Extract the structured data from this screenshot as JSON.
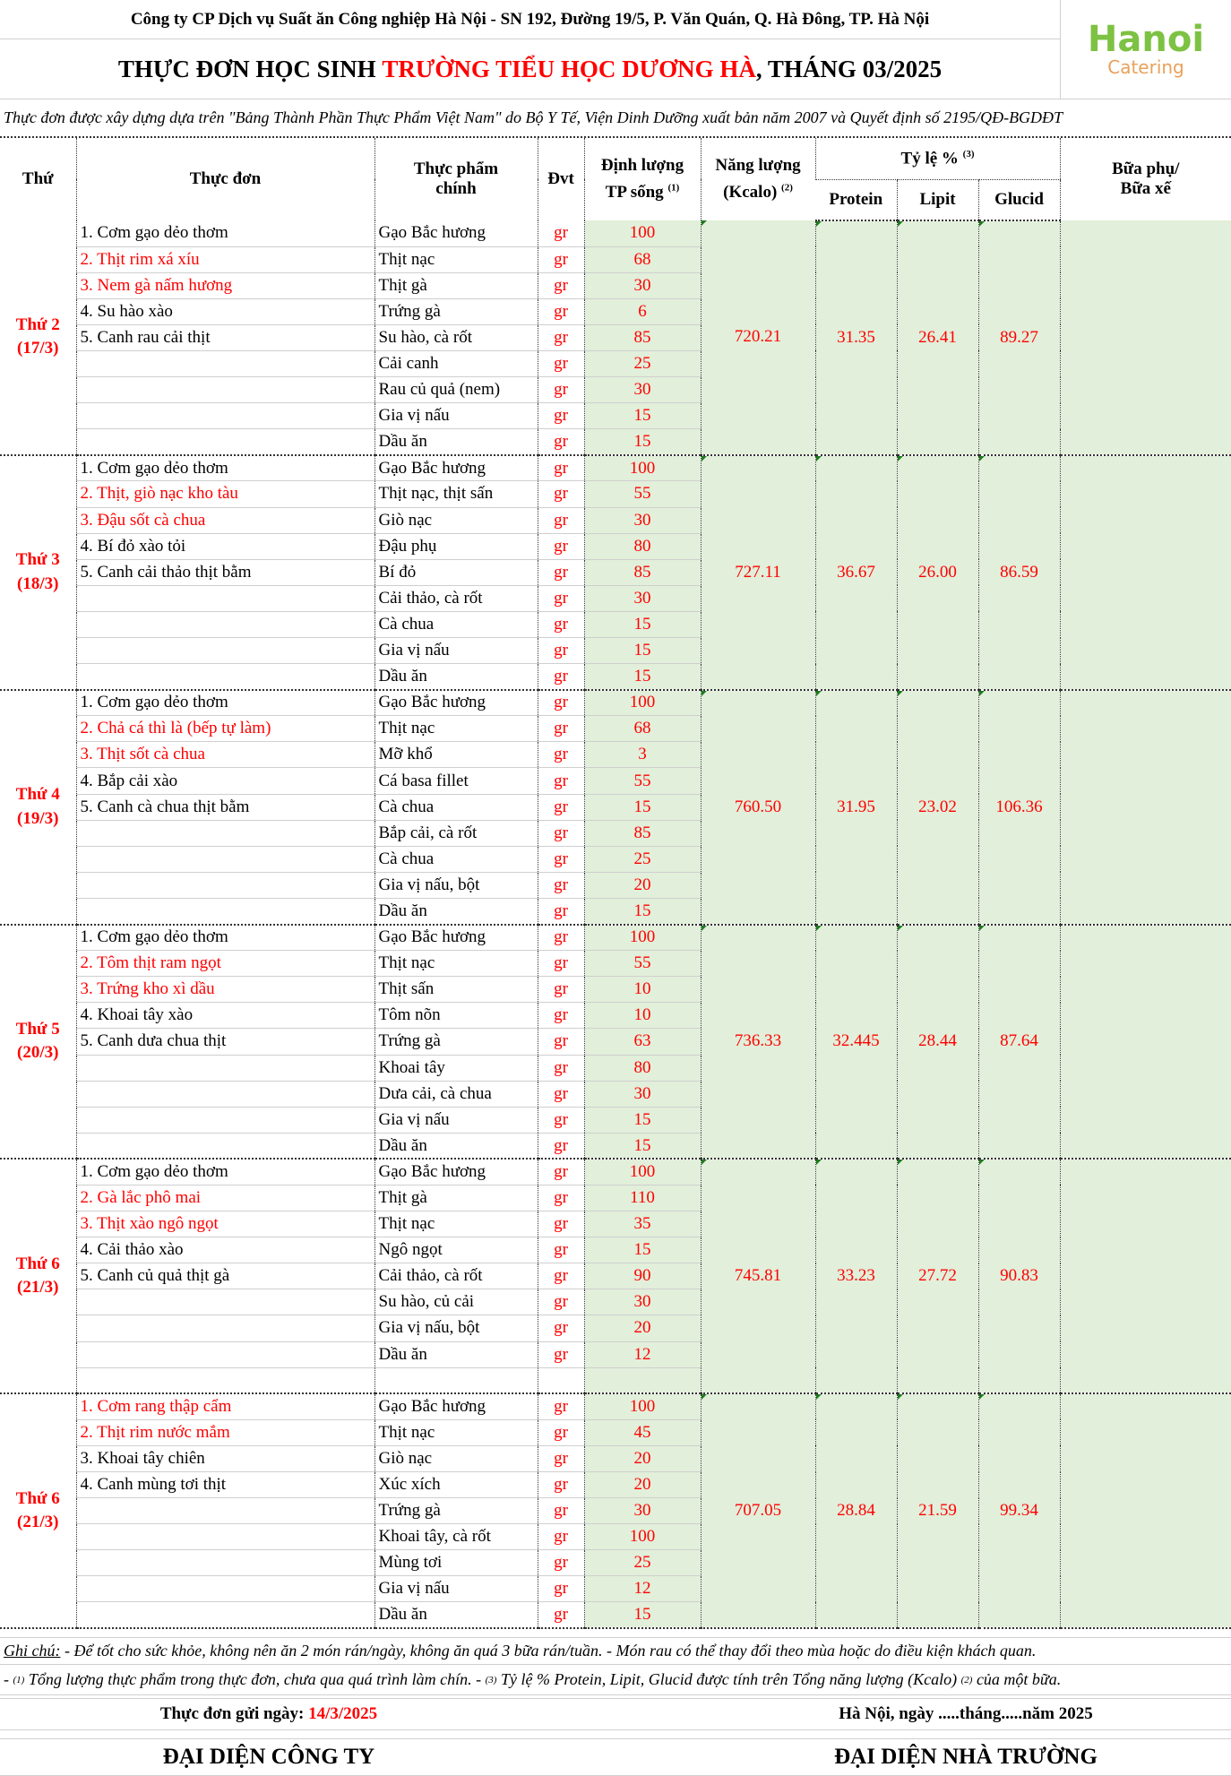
{
  "header": {
    "company": "Công ty CP Dịch vụ Suất ăn Công nghiệp Hà Nội - SN 192, Đường 19/5, P. Văn Quán, Q. Hà Đông, TP. Hà Nội",
    "title_part1": "THỰC ĐƠN HỌC SINH ",
    "title_school": "TRƯỜNG TIỂU HỌC DƯƠNG HÀ",
    "title_part2": ", THÁNG 03/2025",
    "logo_line1": "Hanoi",
    "logo_line2": "Catering",
    "note": "Thực đơn được xây dựng dựa trên \"Bảng Thành Phần Thực Phẩm Việt Nam\" do Bộ Y Tế, Viện Dinh Dưỡng xuất bản năm 2007 và Quyết định số 2195/QĐ-BGDĐT"
  },
  "columns": {
    "thu": "Thứ",
    "thuc_don": "Thực đơn",
    "thuc_pham_1": "Thực phẩm",
    "thuc_pham_2": "chính",
    "dvt": "Đvt",
    "dinh_luong_1": "Định lượng",
    "dinh_luong_2": "TP sống",
    "dinh_luong_sup": "(1)",
    "nang_luong_1": "Năng lượng",
    "nang_luong_2": "(Kcalo)",
    "nang_luong_sup": "(2)",
    "ty_le": "Tỷ lệ %",
    "ty_le_sup": "(3)",
    "protein": "Protein",
    "lipit": "Lipit",
    "glucid": "Glucid",
    "bua_phu_1": "Bữa phụ/",
    "bua_phu_2": "Bữa xế"
  },
  "unit": "gr",
  "colors": {
    "accent": "#ff0000",
    "green_fill": "#e2efda"
  },
  "days": [
    {
      "label": "Thứ 2",
      "date": "(17/3)",
      "dishes": [
        {
          "text": "1. Cơm gạo dẻo thơm",
          "red": false
        },
        {
          "text": "2. Thịt rim xá xíu",
          "red": true
        },
        {
          "text": "3. Nem gà nấm hương",
          "red": true
        },
        {
          "text": "4. Su hào xào",
          "red": false
        },
        {
          "text": "5. Canh rau cải thịt",
          "red": false
        }
      ],
      "ingredients": [
        {
          "name": "Gạo Bắc hương",
          "qty": "100"
        },
        {
          "name": "Thịt nạc",
          "qty": "68"
        },
        {
          "name": "Thịt gà",
          "qty": "30"
        },
        {
          "name": "Trứng gà",
          "qty": "6"
        },
        {
          "name": "Su hào, cà rốt",
          "qty": "85"
        },
        {
          "name": "Cải canh",
          "qty": "25"
        },
        {
          "name": "Rau củ quả (nem)",
          "qty": "30"
        },
        {
          "name": "Gia vị nấu",
          "qty": "15"
        },
        {
          "name": "Dầu ăn",
          "qty": "15"
        }
      ],
      "energy": "720.21",
      "protein": "31.35",
      "lipit": "26.41",
      "glucid": "89.27"
    },
    {
      "label": "Thứ 3",
      "date": "(18/3)",
      "dishes": [
        {
          "text": "1. Cơm gạo dẻo thơm",
          "red": false
        },
        {
          "text": "2. Thịt, giò nạc kho tàu",
          "red": true
        },
        {
          "text": "3. Đậu sốt cà chua",
          "red": true
        },
        {
          "text": "4. Bí đỏ xào tỏi",
          "red": false
        },
        {
          "text": "5. Canh cải thảo thịt bằm",
          "red": false
        }
      ],
      "ingredients": [
        {
          "name": "Gạo Bắc hương",
          "qty": "100"
        },
        {
          "name": "Thịt nạc, thịt sấn",
          "qty": "55"
        },
        {
          "name": "Giò nạc",
          "qty": "30"
        },
        {
          "name": "Đậu phụ",
          "qty": "80"
        },
        {
          "name": "Bí đỏ",
          "qty": "85"
        },
        {
          "name": "Cải thảo, cà rốt",
          "qty": "30"
        },
        {
          "name": "Cà chua",
          "qty": "15"
        },
        {
          "name": "Gia vị nấu",
          "qty": "15"
        },
        {
          "name": "Dầu ăn",
          "qty": "15"
        }
      ],
      "energy": "727.11",
      "protein": "36.67",
      "lipit": "26.00",
      "glucid": "86.59"
    },
    {
      "label": "Thứ 4",
      "date": "(19/3)",
      "dishes": [
        {
          "text": "1. Cơm gạo dẻo thơm",
          "red": false
        },
        {
          "text": "2. Chả cá thì là (bếp tự làm)",
          "red": true
        },
        {
          "text": "3. Thịt sốt cà chua",
          "red": true
        },
        {
          "text": "4. Bắp cải xào",
          "red": false
        },
        {
          "text": "5. Canh cà chua thịt bằm",
          "red": false
        }
      ],
      "ingredients": [
        {
          "name": "Gạo Bắc hương",
          "qty": "100"
        },
        {
          "name": "Thịt nạc",
          "qty": "68"
        },
        {
          "name": "Mỡ khổ",
          "qty": "3"
        },
        {
          "name": "Cá basa fillet",
          "qty": "55"
        },
        {
          "name": "Cà chua",
          "qty": "15"
        },
        {
          "name": "Bắp cải, cà rốt",
          "qty": "85"
        },
        {
          "name": "Cà chua",
          "qty": "25"
        },
        {
          "name": "Gia vị nấu, bột",
          "qty": "20"
        },
        {
          "name": "Dầu ăn",
          "qty": "15"
        }
      ],
      "energy": "760.50",
      "protein": "31.95",
      "lipit": "23.02",
      "glucid": "106.36"
    },
    {
      "label": "Thứ 5",
      "date": "(20/3)",
      "dishes": [
        {
          "text": "1. Cơm gạo dẻo thơm",
          "red": false
        },
        {
          "text": "2. Tôm thịt ram ngọt",
          "red": true
        },
        {
          "text": "3. Trứng kho xì dầu",
          "red": true
        },
        {
          "text": "4. Khoai tây xào",
          "red": false
        },
        {
          "text": "5. Canh dưa chua thịt",
          "red": false
        }
      ],
      "ingredients": [
        {
          "name": "Gạo Bắc hương",
          "qty": "100"
        },
        {
          "name": "Thịt nạc",
          "qty": "55"
        },
        {
          "name": "Thịt sấn",
          "qty": "10"
        },
        {
          "name": "Tôm nõn",
          "qty": "10"
        },
        {
          "name": "Trứng gà",
          "qty": "63"
        },
        {
          "name": "Khoai tây",
          "qty": "80"
        },
        {
          "name": "Dưa cải, cà chua",
          "qty": "30"
        },
        {
          "name": "Gia vị nấu",
          "qty": "15"
        },
        {
          "name": "Dầu ăn",
          "qty": "15"
        }
      ],
      "energy": "736.33",
      "protein": "32.445",
      "lipit": "28.44",
      "glucid": "87.64"
    },
    {
      "label": "Thứ 6",
      "date": "(21/3)",
      "dishes": [
        {
          "text": "1. Cơm gạo dẻo thơm",
          "red": false
        },
        {
          "text": "2. Gà lắc phô mai",
          "red": true
        },
        {
          "text": "3. Thịt xào ngô ngọt",
          "red": true
        },
        {
          "text": "4. Cải thảo xào",
          "red": false
        },
        {
          "text": "5. Canh củ quả thịt gà",
          "red": false
        }
      ],
      "ingredients": [
        {
          "name": "Gạo Bắc hương",
          "qty": "100"
        },
        {
          "name": "Thịt gà",
          "qty": "110"
        },
        {
          "name": "Thịt nạc",
          "qty": "35"
        },
        {
          "name": "Ngô ngọt",
          "qty": "15"
        },
        {
          "name": "Cải thảo, cà rốt",
          "qty": "90"
        },
        {
          "name": "Su hào, củ cải",
          "qty": "30"
        },
        {
          "name": "Gia vị nấu, bột",
          "qty": "20"
        },
        {
          "name": "Dầu ăn",
          "qty": "12"
        }
      ],
      "energy": "745.81",
      "protein": "33.23",
      "lipit": "27.72",
      "glucid": "90.83"
    },
    {
      "label": "Thứ 6",
      "date": "(21/3)",
      "dishes": [
        {
          "text": "1. Cơm rang thập cẩm",
          "red": true
        },
        {
          "text": "2. Thịt rim nước mắm",
          "red": true
        },
        {
          "text": "3. Khoai tây chiên",
          "red": false
        },
        {
          "text": "4. Canh mùng tơi thịt",
          "red": false
        }
      ],
      "ingredients": [
        {
          "name": "Gạo Bắc hương",
          "qty": "100"
        },
        {
          "name": "Thịt nạc",
          "qty": "45"
        },
        {
          "name": "Giò nạc",
          "qty": "20"
        },
        {
          "name": "Xúc xích",
          "qty": "20"
        },
        {
          "name": "Trứng gà",
          "qty": "30"
        },
        {
          "name": "Khoai tây, cà rốt",
          "qty": "100"
        },
        {
          "name": "Mùng tơi",
          "qty": "25"
        },
        {
          "name": "Gia vị nấu",
          "qty": "12"
        },
        {
          "name": "Dầu ăn",
          "qty": "15"
        }
      ],
      "energy": "707.05",
      "protein": "28.84",
      "lipit": "21.59",
      "glucid": "99.34"
    }
  ],
  "footer": {
    "note_label": "Ghi chú:",
    "note1": " - Để tốt cho sức khỏe, không nên ăn 2 món rán/ngày, không ăn quá 3 bữa rán/tuần. - Món rau có thể thay đổi theo mùa hoặc do điều kiện khách quan.",
    "n2_a": "- ",
    "n2_sup1": "(1)",
    "n2_b": " Tổng lượng thực phẩm trong thực đơn, chưa qua quá trình làm chín. - ",
    "n2_sup3": "(3)",
    "n2_c": " Tỷ lệ % Protein, Lipit, Glucid được tính trên Tổng năng lượng (Kcalo) ",
    "n2_sup2": "(2)",
    "n2_d": " của một bữa.",
    "sent_label": "Thực đơn gửi ngày: ",
    "sent_date": "14/3/2025",
    "place_date": "Hà Nội, ngày .....tháng.....năm 2025",
    "rep_company": "ĐẠI DIỆN CÔNG TY",
    "rep_school": "ĐẠI DIỆN NHÀ TRƯỜNG"
  }
}
